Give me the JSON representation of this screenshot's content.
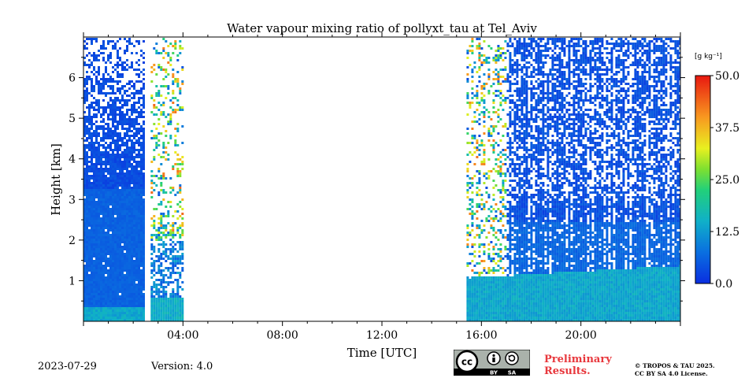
{
  "chart_data": {
    "type": "heatmap",
    "title": "Water vapour mixing ratio of pollyxt_tau at Tel_Aviv",
    "xlabel": "Time [UTC]",
    "ylabel": "Height [km]",
    "x_unit": "hours UTC",
    "xlim": [
      0,
      24
    ],
    "ylim": [
      0,
      7
    ],
    "x_ticks": [
      {
        "value": 4,
        "label": "04:00"
      },
      {
        "value": 8,
        "label": "08:00"
      },
      {
        "value": 12,
        "label": "12:00"
      },
      {
        "value": 16,
        "label": "16:00"
      },
      {
        "value": 20,
        "label": "20:00"
      }
    ],
    "y_ticks": [
      {
        "value": 1,
        "label": "1"
      },
      {
        "value": 2,
        "label": "2"
      },
      {
        "value": 3,
        "label": "3"
      },
      {
        "value": 4,
        "label": "4"
      },
      {
        "value": 5,
        "label": "5"
      },
      {
        "value": 6,
        "label": "6"
      }
    ],
    "colorbar": {
      "label": "[g kg⁻¹]",
      "range": [
        0,
        50
      ],
      "ticks": [
        {
          "value": 0,
          "label": "0.0"
        },
        {
          "value": 12.5,
          "label": "12.5"
        },
        {
          "value": 25,
          "label": "25.0"
        },
        {
          "value": 37.5,
          "label": "37.5"
        },
        {
          "value": 50,
          "label": "50.0"
        }
      ]
    },
    "measurement_periods": [
      {
        "start": 0.0,
        "end": 2.4,
        "max_height": 7.0,
        "boundary_layer_top": 0.35,
        "boundary_layer_value": 14
      },
      {
        "start": 2.7,
        "end": 4.0,
        "max_height": 7.0,
        "boundary_layer_top": 0.6,
        "boundary_layer_value": 15
      },
      {
        "start": 15.4,
        "end": 24.0,
        "max_height": 7.0,
        "boundary_layer_top": 1.1,
        "boundary_layer_value": 14
      }
    ]
  },
  "footer": {
    "date": "2023-07-29",
    "version": "Version: 4.0",
    "preliminary_line1": "Preliminary",
    "preliminary_line2": "Results.",
    "copyright_line1": "© TROPOS & TAU 2025.",
    "copyright_line2": "CC BY SA 4.0 License.",
    "license_badge": {
      "cc": "cc",
      "by": "BY",
      "sa": "SA"
    }
  }
}
